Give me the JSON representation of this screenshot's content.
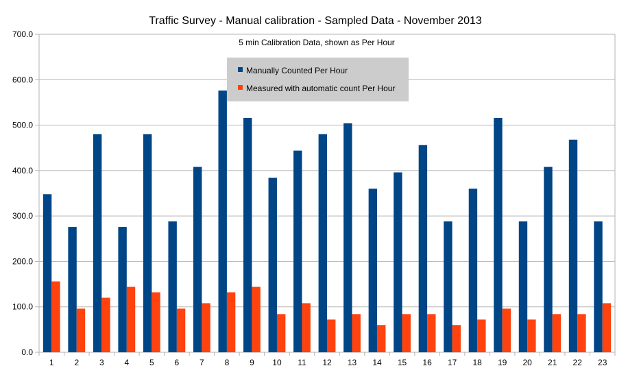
{
  "chart_data": {
    "type": "bar",
    "title": "Traffic Survey - Manual calibration  - Sampled Data - November 2013",
    "subtitle": "5 min Calibration Data, shown as Per Hour",
    "xlabel": "",
    "ylabel": "",
    "ylim": [
      0,
      700
    ],
    "yticks": [
      "0.0",
      "100.0",
      "200.0",
      "300.0",
      "400.0",
      "500.0",
      "600.0",
      "700.0"
    ],
    "grid": "horizontal",
    "legend_position": "top-center",
    "categories": [
      "1",
      "2",
      "3",
      "4",
      "5",
      "6",
      "7",
      "8",
      "9",
      "10",
      "11",
      "12",
      "13",
      "14",
      "15",
      "16",
      "17",
      "18",
      "19",
      "20",
      "21",
      "22",
      "23"
    ],
    "series": [
      {
        "name": "Manually Counted Per Hour",
        "color": "#004586",
        "values": [
          348,
          276,
          480,
          276,
          480,
          288,
          408,
          576,
          516,
          384,
          444,
          480,
          504,
          360,
          396,
          456,
          288,
          360,
          516,
          288,
          408,
          468,
          288
        ]
      },
      {
        "name": "Measured with automatic count Per Hour",
        "color": "#ff420e",
        "values": [
          156,
          96,
          120,
          144,
          132,
          96,
          108,
          132,
          144,
          84,
          108,
          72,
          84,
          60,
          84,
          84,
          60,
          72,
          96,
          72,
          84,
          84,
          108
        ]
      }
    ]
  }
}
